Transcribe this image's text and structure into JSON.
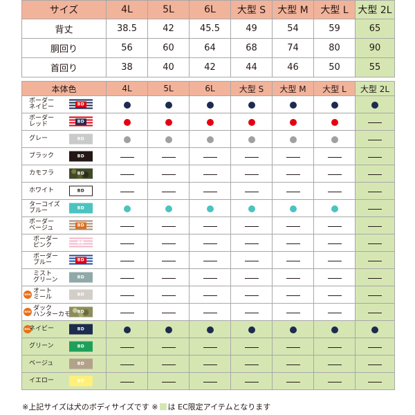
{
  "colors": {
    "header": "#f2b39b",
    "ec": "#d6e6b3",
    "border": "#a7a7a7"
  },
  "size_table": {
    "corner_label": "サイズ",
    "sizes": [
      "4L",
      "5L",
      "6L",
      "大型 S",
      "大型 M",
      "大型 L",
      "大型 2L"
    ],
    "rows": [
      {
        "label": "背丈",
        "values": [
          "38.5",
          "42",
          "45.5",
          "49",
          "54",
          "59",
          "65"
        ]
      },
      {
        "label": "胴回り",
        "values": [
          "56",
          "60",
          "64",
          "68",
          "74",
          "80",
          "90"
        ]
      },
      {
        "label": "首回り",
        "values": [
          "38",
          "40",
          "42",
          "44",
          "46",
          "50",
          "55"
        ]
      }
    ]
  },
  "color_table": {
    "corner_label": "本体色",
    "sizes": [
      "4L",
      "5L",
      "6L",
      "大型 S",
      "大型 M",
      "大型 L",
      "大型 2L"
    ],
    "swatch_text": "BD",
    "new_badge_text": "NEW",
    "rows": [
      {
        "name": "ボーダー\nネイビー",
        "swatch": "border-navy",
        "new": false,
        "ec": false,
        "availability": [
          "dot",
          "dot",
          "dot",
          "dot",
          "dot",
          "dot",
          "dot"
        ],
        "dot_color": "#1d2b4f"
      },
      {
        "name": "ボーダー\nレッド",
        "swatch": "border-red",
        "new": false,
        "ec": false,
        "availability": [
          "dot",
          "dot",
          "dot",
          "dot",
          "dot",
          "dot",
          "dash"
        ],
        "dot_color": "#e60012"
      },
      {
        "name": "グレー",
        "swatch": "gray",
        "new": false,
        "ec": false,
        "availability": [
          "dot",
          "dot",
          "dot",
          "dot",
          "dot",
          "dot",
          "dash"
        ],
        "dot_color": "#9fa0a0"
      },
      {
        "name": "ブラック",
        "swatch": "black",
        "new": false,
        "ec": false,
        "availability": [
          "dash",
          "dash",
          "dash",
          "dash",
          "dash",
          "dash",
          "dash"
        ],
        "dot_color": "#231815"
      },
      {
        "name": "カモフラ",
        "swatch": "camo",
        "new": false,
        "ec": false,
        "availability": [
          "dash",
          "dash",
          "dash",
          "dash",
          "dash",
          "dash",
          "dash"
        ],
        "dot_color": "#4a4a2a"
      },
      {
        "name": "ホワイト",
        "swatch": "white",
        "new": false,
        "ec": false,
        "availability": [
          "dash",
          "dash",
          "dash",
          "dash",
          "dash",
          "dash",
          "dash"
        ],
        "dot_color": "#ffffff"
      },
      {
        "name": "ターコイズ\nブルー",
        "swatch": "turquoise",
        "new": false,
        "ec": false,
        "availability": [
          "dot",
          "dot",
          "dot",
          "dot",
          "dot",
          "dot",
          "dash"
        ],
        "dot_color": "#4cc3c0"
      },
      {
        "name": "ボーダー\nベージュ",
        "swatch": "border-beige",
        "new": false,
        "ec": false,
        "availability": [
          "dash",
          "dash",
          "dash",
          "dash",
          "dash",
          "dash",
          "dash"
        ],
        "dot_color": "#a48b6e"
      },
      {
        "name": "ボーダー\nピンク",
        "swatch": "border-pink",
        "new": false,
        "ec": false,
        "indent": true,
        "availability": [
          "dash",
          "dash",
          "dash",
          "dash",
          "dash",
          "dash",
          "dash"
        ],
        "dot_color": "#f4b4c8"
      },
      {
        "name": "ボーダー\nブルー",
        "swatch": "border-blue",
        "new": false,
        "ec": false,
        "indent": true,
        "availability": [
          "dash",
          "dash",
          "dash",
          "dash",
          "dash",
          "dash",
          "dash"
        ],
        "dot_color": "#1f4aa0"
      },
      {
        "name": "ミスト\nグリーン",
        "swatch": "mist-green",
        "new": false,
        "ec": false,
        "indent": true,
        "availability": [
          "dash",
          "dash",
          "dash",
          "dash",
          "dash",
          "dash",
          "dash"
        ],
        "dot_color": "#8fa9a8"
      },
      {
        "name": "オート\nミール",
        "swatch": "oatmeal",
        "new": true,
        "ec": false,
        "indent": true,
        "availability": [
          "dash",
          "dash",
          "dash",
          "dash",
          "dash",
          "dash",
          "dash"
        ],
        "dot_color": "#cfcac2"
      },
      {
        "name": "ダック\nハンターカモ",
        "swatch": "duck-camo",
        "new": true,
        "ec": false,
        "indent": true,
        "availability": [
          "dash",
          "dash",
          "dash",
          "dash",
          "dash",
          "dash",
          "dash"
        ],
        "dot_color": "#8a8a5a"
      },
      {
        "name": "ネイビー",
        "swatch": "navy",
        "new": true,
        "ec": true,
        "availability": [
          "dot",
          "dot",
          "dot",
          "dot",
          "dot",
          "dot",
          "dot"
        ],
        "dot_color": "#1d2b4f"
      },
      {
        "name": "グリーン",
        "swatch": "green",
        "new": false,
        "ec": true,
        "availability": [
          "dash",
          "dash",
          "dash",
          "dash",
          "dash",
          "dash",
          "dash"
        ],
        "dot_color": "#1fa05a"
      },
      {
        "name": "ベージュ",
        "swatch": "beige",
        "new": false,
        "ec": true,
        "availability": [
          "dash",
          "dash",
          "dash",
          "dash",
          "dash",
          "dash",
          "dash"
        ],
        "dot_color": "#b3a28a"
      },
      {
        "name": "イエロー",
        "swatch": "yellow",
        "new": false,
        "ec": true,
        "availability": [
          "dash",
          "dash",
          "dash",
          "dash",
          "dash",
          "dash",
          "dash"
        ],
        "dot_color": "#fff07a"
      }
    ]
  },
  "footnote": {
    "before": "※上記サイズは犬のボディサイズです ※",
    "after": "は EC限定アイテムとなります"
  }
}
